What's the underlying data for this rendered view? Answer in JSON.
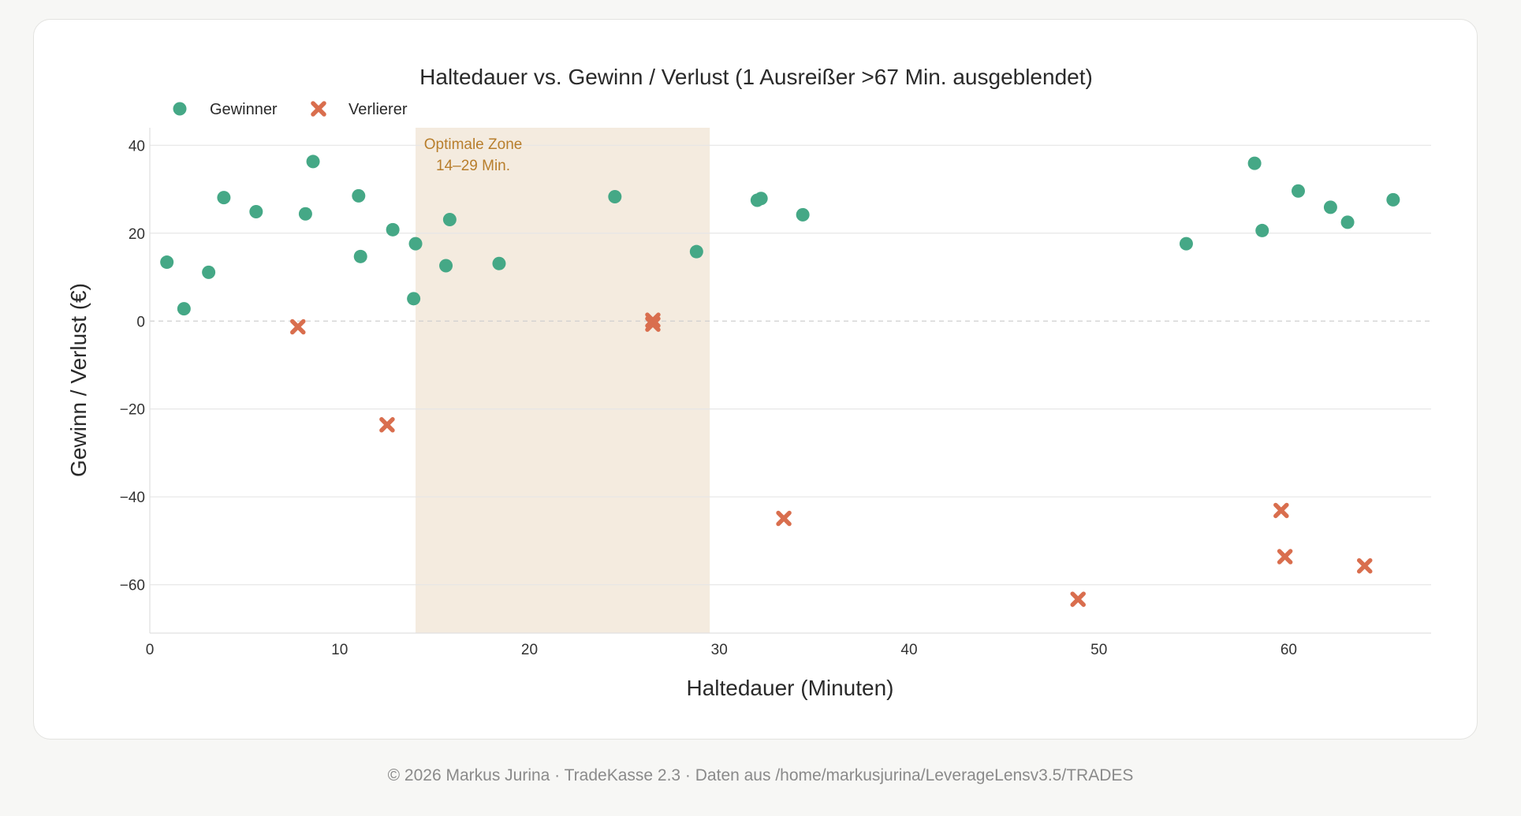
{
  "footer": {
    "text": "© 2026 Markus Jurina · TradeKasse 2.3 · Daten aus /home/markusjurina/LeverageLensv3.5/TRADES"
  },
  "chart_data": {
    "type": "scatter",
    "title": "Haltedauer vs. Gewinn / Verlust (1 Ausreißer >67 Min. ausgeblendet)",
    "xlabel": "Haltedauer (Minuten)",
    "ylabel": "Gewinn / Verlust (€)",
    "xlim": [
      0,
      67.5
    ],
    "ylim": [
      -71,
      44
    ],
    "xticks": [
      0,
      10,
      20,
      30,
      40,
      50,
      60
    ],
    "yticks": [
      40,
      20,
      0,
      -20,
      -40,
      -60
    ],
    "grid": "horizontal",
    "zero_line": "dashed",
    "legend": "top-left",
    "zone": {
      "x_start": 14,
      "x_end": 29.5,
      "label_lines": [
        "Optimale Zone",
        "14–29 Min."
      ],
      "fill": "#f4ebdf",
      "text_color": "#b87e2c"
    },
    "series": [
      {
        "name": "Gewinner",
        "marker": "circle",
        "color": "#45a886",
        "points": [
          [
            0.9,
            13.4
          ],
          [
            1.8,
            2.8
          ],
          [
            3.1,
            11.1
          ],
          [
            3.9,
            28.1
          ],
          [
            5.6,
            24.9
          ],
          [
            8.2,
            24.4
          ],
          [
            8.6,
            36.3
          ],
          [
            11.0,
            28.5
          ],
          [
            11.1,
            14.7
          ],
          [
            12.8,
            20.8
          ],
          [
            13.9,
            5.1
          ],
          [
            14.0,
            17.6
          ],
          [
            15.6,
            12.6
          ],
          [
            15.8,
            23.1
          ],
          [
            18.4,
            13.1
          ],
          [
            24.5,
            28.3
          ],
          [
            28.8,
            15.8
          ],
          [
            32.0,
            27.5
          ],
          [
            32.2,
            27.9
          ],
          [
            34.4,
            24.2
          ],
          [
            54.6,
            17.6
          ],
          [
            58.2,
            35.9
          ],
          [
            58.6,
            20.6
          ],
          [
            60.5,
            29.6
          ],
          [
            62.2,
            25.9
          ],
          [
            63.1,
            22.5
          ],
          [
            65.5,
            27.6
          ]
        ]
      },
      {
        "name": "Verlierer",
        "marker": "x",
        "color": "#d96e4e",
        "points": [
          [
            7.8,
            -1.3
          ],
          [
            12.5,
            -23.6
          ],
          [
            26.5,
            0.2
          ],
          [
            26.5,
            -0.7
          ],
          [
            33.4,
            -44.9
          ],
          [
            48.9,
            -63.3
          ],
          [
            59.6,
            -43.1
          ],
          [
            59.8,
            -53.6
          ],
          [
            64.0,
            -55.7
          ]
        ]
      }
    ]
  }
}
